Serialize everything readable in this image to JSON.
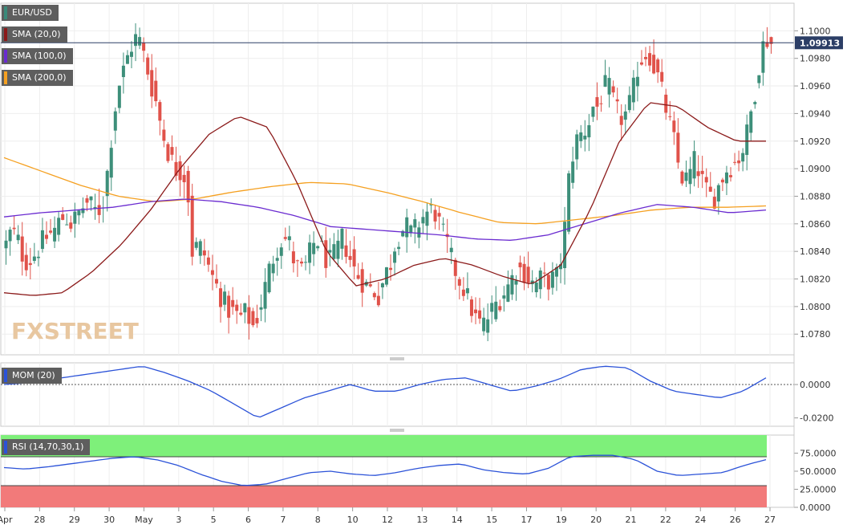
{
  "chart_data": {
    "type": "candlestick",
    "title": "EUR/USD",
    "watermark": "FXSTREET",
    "current_price_label": "1.09913",
    "current_price": 1.09913,
    "x_ticks": [
      "Apr",
      "28",
      "29",
      "30",
      "May",
      "3",
      "5",
      "6",
      "7",
      "8",
      "10",
      "12",
      "13",
      "14",
      "15",
      "17",
      "19",
      "20",
      "21",
      "22",
      "24",
      "26",
      "27"
    ],
    "price_axis": {
      "range": [
        1.0765,
        1.102
      ],
      "ticks": [
        "1.0780",
        "1.0800",
        "1.0820",
        "1.0840",
        "1.0860",
        "1.0880",
        "1.0900",
        "1.0920",
        "1.0940",
        "1.0960",
        "1.0980",
        "1.1000"
      ]
    },
    "legend": [
      {
        "label": "EUR/USD",
        "color": "#3a8a7a"
      },
      {
        "label": "SMA (20,0)",
        "color": "#8b1a1a"
      },
      {
        "label": "SMA (100,0)",
        "color": "#6a2bd0"
      },
      {
        "label": "SMA (200,0)",
        "color": "#f5a020"
      }
    ],
    "candle_colors": {
      "up": "#3d8f7a",
      "down": "#e0524a"
    },
    "price_anchors": [
      [
        1.0845,
        1.0855,
        1.085,
        1.0838,
        1.0832,
        1.0836,
        1.0842,
        1.0848,
        1.0852,
        1.0855,
        1.0862,
        1.0866,
        1.086,
        1.0864,
        1.087,
        1.0876,
        1.0872,
        1.0868,
        1.0874,
        1.09,
        1.0935,
        1.096,
        1.0972,
        1.0985,
        1.0995,
        1.0992,
        1.0978,
        1.0962,
        1.0948,
        1.093,
        1.0915,
        1.0905,
        1.0898,
        1.09,
        1.088
      ],
      [
        1.084,
        1.0845,
        1.0838,
        1.0825,
        1.0815,
        1.0805,
        1.0798,
        1.0795,
        1.0792,
        1.0796,
        1.0785,
        1.0795,
        1.0812,
        1.083,
        1.0842,
        1.085,
        1.0848,
        1.0832,
        1.0825,
        1.083,
        1.0845,
        1.0848,
        1.0836,
        1.0832,
        1.084,
        1.085,
        1.0838,
        1.0826,
        1.082,
        1.0815,
        1.0812,
        1.0808,
        1.0822,
        1.0832
      ],
      [
        1.0845,
        1.0855,
        1.0858,
        1.0852,
        1.086,
        1.0866,
        1.087,
        1.0868,
        1.0855,
        1.0845,
        1.083,
        1.082,
        1.0812,
        1.08,
        1.079,
        1.0786,
        1.0792,
        1.08,
        1.0806,
        1.0812,
        1.082,
        1.0828,
        1.0826,
        1.082,
        1.0815,
        1.082,
        1.0818,
        1.082,
        1.0822,
        1.085,
        1.09,
        1.092,
        1.0925,
        1.093,
        1.0945
      ],
      [
        1.0945,
        1.0955,
        1.0962,
        1.095,
        1.094,
        1.0936,
        1.0942,
        1.0955,
        1.0975,
        1.0982,
        1.0985,
        1.0975,
        1.0965,
        1.095,
        1.0935,
        1.092,
        1.09,
        1.089,
        1.0895,
        1.0905,
        1.0898,
        1.0885,
        1.088,
        1.088,
        1.089,
        1.0898,
        1.0902,
        1.0905,
        1.091,
        1.092,
        1.094,
        1.096,
        1.0985,
        1.0995,
        1.0991
      ]
    ],
    "sma20_anchors": [
      1.081,
      1.0808,
      1.081,
      1.0825,
      1.0845,
      1.087,
      1.09,
      1.0925,
      1.0938,
      1.093,
      1.089,
      1.084,
      1.0815,
      1.082,
      1.083,
      1.0835,
      1.083,
      1.0822,
      1.0816,
      1.083,
      1.087,
      1.092,
      1.0948,
      1.0945,
      1.093,
      1.092,
      1.092
    ],
    "sma100_anchors": [
      1.0865,
      1.0868,
      1.087,
      1.0872,
      1.0876,
      1.0878,
      1.0876,
      1.0872,
      1.0866,
      1.0858,
      1.0856,
      1.0854,
      1.0852,
      1.0849,
      1.0848,
      1.0852,
      1.086,
      1.0868,
      1.0874,
      1.0872,
      1.0868,
      1.087
    ],
    "sma200_anchors": [
      1.0908,
      1.0898,
      1.0888,
      1.088,
      1.0876,
      1.0878,
      1.0883,
      1.0887,
      1.089,
      1.0889,
      1.0883,
      1.0876,
      1.0868,
      1.0861,
      1.086,
      1.0863,
      1.0866,
      1.087,
      1.0872,
      1.0872,
      1.0873
    ],
    "momentum": {
      "label": "MOM (20)",
      "color": "#2b52d8",
      "range": [
        -0.025,
        0.013
      ],
      "ticks": [
        "0.0000",
        "-0.0200"
      ],
      "anchors": [
        0.0,
        0.001,
        0.003,
        0.005,
        0.007,
        0.009,
        0.011,
        0.007,
        0.002,
        -0.004,
        -0.012,
        -0.02,
        -0.014,
        -0.008,
        -0.004,
        0.0,
        -0.004,
        -0.004,
        0.0,
        0.003,
        0.004,
        0.0,
        -0.004,
        -0.001,
        0.003,
        0.009,
        0.011,
        0.01,
        0.002,
        -0.004,
        -0.006,
        -0.008,
        -0.004,
        0.004
      ]
    },
    "rsi": {
      "label": "RSI (14,70,30,1)",
      "color": "#2b52d8",
      "range": [
        0,
        100
      ],
      "overbought": 70,
      "oversold": 30,
      "ticks": [
        "0.0000",
        "25.0000",
        "50.0000",
        "75.0000"
      ],
      "anchors": [
        55,
        53,
        56,
        60,
        64,
        68,
        70,
        66,
        58,
        46,
        36,
        30,
        32,
        40,
        48,
        50,
        46,
        44,
        48,
        54,
        58,
        60,
        52,
        48,
        46,
        54,
        70,
        72,
        72,
        66,
        50,
        44,
        46,
        48,
        58,
        66
      ]
    }
  }
}
